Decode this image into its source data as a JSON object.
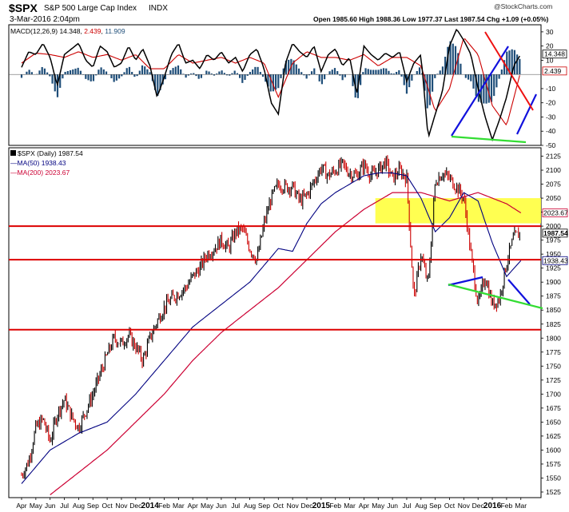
{
  "header": {
    "symbol": "$SPX",
    "description": "S&P 500 Large Cap Index",
    "exchange": "INDX",
    "date": "3-Mar-2016 2:04pm",
    "watermark": "@StockCharts.com",
    "quote": "Open 1985.60 High 1988.36 Low 1977.37 Last 1987.54 Chg +1.09 (+0.05%)"
  },
  "macd_panel": {
    "label_prefix": "MACD(12,26,9)",
    "macd_value": "14.348",
    "signal_value": "2.439",
    "hist_value": "11.909",
    "y_ticks": [
      "30",
      "20",
      "10",
      "-10",
      "-20",
      "-30",
      "-40",
      "-50"
    ],
    "right_badges": [
      "14.348",
      "2.439"
    ]
  },
  "price_panel": {
    "legend_main": "$SPX (Daily) 1987.54",
    "legend_ma50": "MA(50) 1938.43",
    "legend_ma200": "MA(200) 2023.67",
    "y_ticks": [
      "2125",
      "2100",
      "2075",
      "2050",
      "2025",
      "2000",
      "1975",
      "1950",
      "1925",
      "1900",
      "1875",
      "1850",
      "1825",
      "1800",
      "1775",
      "1750",
      "1725",
      "1700",
      "1675",
      "1650",
      "1625",
      "1600",
      "1575",
      "1550",
      "1525"
    ],
    "right_badges": [
      "2023.67",
      "1987.54",
      "1938.43"
    ]
  },
  "x_axis": {
    "ticks": [
      "Apr",
      "May",
      "Jun",
      "Jul",
      "Aug",
      "Sep",
      "Oct",
      "Nov",
      "Dec",
      "2014",
      "Feb",
      "Mar",
      "Apr",
      "May",
      "Jun",
      "Jul",
      "Aug",
      "Sep",
      "Oct",
      "Nov",
      "Dec",
      "2015",
      "Feb",
      "Mar",
      "Apr",
      "May",
      "Jun",
      "Jul",
      "Aug",
      "Sep",
      "Oct",
      "Nov",
      "Dec",
      "2016",
      "Feb",
      "Mar"
    ]
  },
  "colors": {
    "price_bars": "#000000",
    "down_bars": "#cc0000",
    "ma50": "#000080",
    "ma200": "#cc0033",
    "macd_line": "#000000",
    "signal_line": "#cc0000",
    "histogram": "#1f4e79",
    "horizontal_lines": "#dd0000",
    "trend_blue": "#1111dd",
    "trend_green": "#33dd33",
    "zone_yellow": "#ffff33"
  },
  "chart_data": [
    {
      "type": "line",
      "panel": "MACD(12,26,9)",
      "y_range": [
        -50,
        35
      ],
      "series": [
        {
          "name": "MACD",
          "x_months": [
            0,
            0.5,
            1,
            1.5,
            2,
            2.5,
            3,
            3.5,
            4,
            4.5,
            5,
            5.5,
            6,
            6.5,
            7,
            7.5,
            8,
            8.5,
            9,
            9.5,
            10,
            10.5,
            11,
            11.5,
            12,
            12.5,
            13,
            13.5,
            14,
            14.5,
            15,
            15.5,
            16,
            16.5,
            17,
            17.5,
            18,
            18.5,
            19,
            19.5,
            20,
            20.5,
            21,
            21.5,
            22,
            22.5,
            23,
            23.5,
            24,
            24.5,
            25,
            25.5,
            26,
            26.5,
            27,
            27.5,
            28,
            28.5,
            29,
            29.5,
            30,
            30.5,
            31,
            31.5,
            32,
            32.5,
            33,
            33.5,
            34,
            34.5,
            35
          ],
          "values": [
            5,
            16,
            14,
            22,
            12,
            -8,
            14,
            18,
            22,
            10,
            5,
            20,
            16,
            5,
            8,
            20,
            10,
            18,
            6,
            -16,
            -2,
            14,
            22,
            8,
            10,
            4,
            14,
            10,
            16,
            8,
            12,
            2,
            14,
            18,
            4,
            -20,
            -28,
            8,
            22,
            16,
            12,
            20,
            2,
            14,
            18,
            6,
            12,
            -14,
            20,
            14,
            10,
            15,
            12,
            16,
            -5,
            8,
            14,
            -45,
            -28,
            -12,
            20,
            32,
            24,
            14,
            -10,
            -30,
            -46,
            -32,
            -16,
            6,
            14.348
          ]
        },
        {
          "name": "Signal",
          "x_months": [
            0,
            1,
            2,
            3,
            4,
            5,
            6,
            7,
            8,
            9,
            10,
            11,
            12,
            13,
            14,
            15,
            16,
            17,
            18,
            19,
            20,
            21,
            22,
            23,
            24,
            25,
            26,
            27,
            28,
            29,
            30,
            31,
            32,
            33,
            34,
            35
          ],
          "values": [
            8,
            15,
            14,
            12,
            16,
            12,
            14,
            10,
            14,
            4,
            4,
            14,
            8,
            10,
            12,
            8,
            12,
            8,
            -16,
            8,
            16,
            12,
            12,
            10,
            14,
            6,
            12,
            12,
            6,
            -26,
            -10,
            26,
            14,
            -22,
            -36,
            2.439
          ]
        }
      ]
    },
    {
      "type": "line",
      "panel": "$SPX (Daily)",
      "y_range": [
        1515,
        2140
      ],
      "x_labels": [
        "Apr",
        "May",
        "Jun",
        "Jul",
        "Aug",
        "Sep",
        "Oct",
        "Nov",
        "Dec",
        "2014",
        "Feb",
        "Mar",
        "Apr",
        "May",
        "Jun",
        "Jul",
        "Aug",
        "Sep",
        "Oct",
        "Nov",
        "Dec",
        "2015",
        "Feb",
        "Mar",
        "Apr",
        "May",
        "Jun",
        "Jul",
        "Aug",
        "Sep",
        "Oct",
        "Nov",
        "Dec",
        "2016",
        "Feb",
        "Mar"
      ],
      "series": [
        {
          "name": "$SPX",
          "x_months": [
            0,
            0.5,
            1,
            1.5,
            2,
            2.5,
            3,
            3.5,
            4,
            4.5,
            5,
            5.5,
            6,
            6.5,
            7,
            7.5,
            8,
            8.5,
            9,
            9.5,
            10,
            10.5,
            11,
            11.5,
            12,
            12.5,
            13,
            13.5,
            14,
            14.5,
            15,
            15.5,
            16,
            16.5,
            17,
            17.5,
            18,
            18.5,
            19,
            19.5,
            20,
            20.5,
            21,
            21.5,
            22,
            22.5,
            23,
            23.5,
            24,
            24.5,
            25,
            25.5,
            26,
            26.5,
            27,
            27.5,
            28,
            28.5,
            29,
            29.5,
            30,
            30.5,
            31,
            31.5,
            32,
            32.5,
            33,
            33.5,
            34,
            34.5,
            35
          ],
          "values": [
            1555,
            1580,
            1640,
            1655,
            1615,
            1665,
            1690,
            1660,
            1640,
            1670,
            1700,
            1735,
            1770,
            1800,
            1790,
            1805,
            1785,
            1760,
            1800,
            1830,
            1855,
            1870,
            1880,
            1890,
            1910,
            1925,
            1950,
            1960,
            1975,
            1960,
            1990,
            1995,
            1960,
            1940,
            2005,
            2050,
            2075,
            2070,
            2070,
            2045,
            2055,
            2080,
            2105,
            2090,
            2100,
            2110,
            2095,
            2090,
            2110,
            2090,
            2100,
            2115,
            2085,
            2100,
            2085,
            1870,
            1950,
            1895,
            2080,
            2095,
            2085,
            2070,
            2050,
            1950,
            1860,
            1910,
            1860,
            1870,
            1935,
            1980,
            1987.54
          ]
        },
        {
          "name": "MA(50)",
          "x_months": [
            0,
            2,
            4,
            6,
            8,
            10,
            12,
            14,
            16,
            18,
            19,
            20,
            21,
            22,
            23,
            24,
            25,
            26,
            27,
            28,
            29,
            30,
            31,
            32,
            33,
            34,
            35
          ],
          "values": [
            1540,
            1600,
            1630,
            1650,
            1700,
            1760,
            1820,
            1860,
            1900,
            1960,
            1955,
            2005,
            2040,
            2060,
            2075,
            2090,
            2095,
            2095,
            2090,
            2050,
            1990,
            2015,
            2060,
            2045,
            1970,
            1910,
            1938.43
          ]
        },
        {
          "name": "MA(200)",
          "x_months": [
            2,
            4,
            6,
            8,
            10,
            12,
            14,
            16,
            18,
            20,
            22,
            24,
            26,
            28,
            30,
            32,
            34,
            35
          ],
          "values": [
            1520,
            1560,
            1600,
            1650,
            1700,
            1760,
            1810,
            1850,
            1890,
            1940,
            1990,
            2030,
            2060,
            2060,
            2045,
            2060,
            2040,
            2023.67
          ]
        }
      ],
      "horizontal_lines": [
        2000,
        1940,
        1815
      ],
      "shaded_zone": [
        2005,
        2050
      ]
    }
  ]
}
